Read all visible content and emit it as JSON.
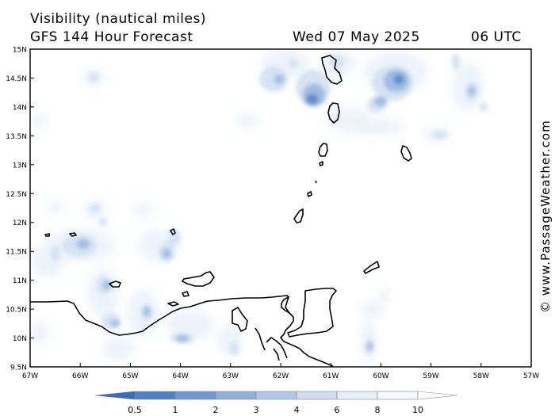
{
  "header": {
    "title": "Visibility (nautical miles)",
    "subtitle": "GFS 144 Hour Forecast",
    "date": "Wed 07 May 2025",
    "time": "06 UTC"
  },
  "credit": "© www.PassageWeather.com",
  "axes": {
    "lat_labels": [
      "15N",
      "14.5N",
      "14N",
      "13.5N",
      "13N",
      "12.5N",
      "12N",
      "11.5N",
      "11N",
      "10.5N",
      "10N",
      "9.5N"
    ],
    "lon_labels": [
      "67W",
      "66W",
      "65W",
      "64W",
      "63W",
      "62W",
      "61W",
      "60W",
      "59W",
      "58W",
      "57W"
    ]
  },
  "legend": {
    "values": [
      "0.5",
      "1",
      "2",
      "3",
      "4",
      "6",
      "8",
      "10"
    ],
    "colors": [
      "#3a6db3",
      "#4f82c4",
      "#6f98d0",
      "#8fb0dc",
      "#b0c8e8",
      "#cfdcf0",
      "#e6eef8",
      "#f5f8fc",
      "#ffffff"
    ]
  },
  "colors": {
    "coast": "#000000",
    "fog_dark": "#5b89c8",
    "fog_mid": "#9ebbe2",
    "fog_light": "#d6e3f3",
    "fog_faint": "#edf3fa"
  }
}
